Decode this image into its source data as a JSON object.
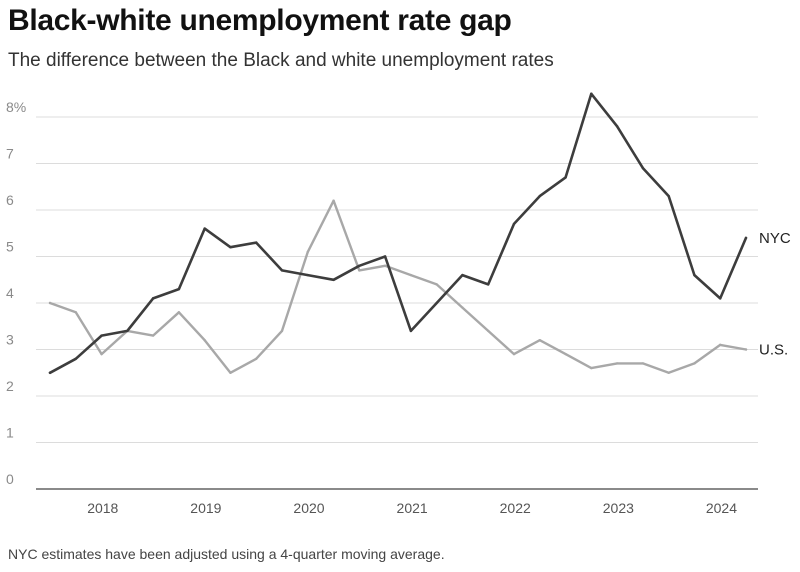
{
  "title": "Black-white unemployment rate gap",
  "subtitle": "The difference between the Black and white unemployment rates",
  "note": "NYC estimates have been adjusted using a 4-quarter moving average.",
  "colors": {
    "nyc": "#3d3d3d",
    "us": "#a8a8a8"
  },
  "chart_data": {
    "type": "line",
    "title": "Black-white unemployment rate gap",
    "subtitle": "The difference between the Black and white unemployment rates",
    "xlabel": "",
    "ylabel": "",
    "ylim": [
      0,
      8.5
    ],
    "xlim": [
      2017.75,
      2024.75
    ],
    "yticks": [
      0,
      1,
      2,
      3,
      4,
      5,
      6,
      7,
      8
    ],
    "ytick_labels": [
      "0",
      "1",
      "2",
      "3",
      "4",
      "5",
      "6",
      "7",
      "8%"
    ],
    "xticks": [
      2018,
      2019,
      2020,
      2021,
      2022,
      2023,
      2024
    ],
    "xtick_labels": [
      "2018",
      "2019",
      "2020",
      "2021",
      "2022",
      "2023",
      "2024"
    ],
    "grid": true,
    "legend": "direct labels at right end of lines",
    "series": [
      {
        "name": "NYC",
        "label": "NYC",
        "x": [
          2017.75,
          2018.0,
          2018.25,
          2018.5,
          2018.75,
          2019.0,
          2019.25,
          2019.5,
          2019.75,
          2020.0,
          2020.25,
          2020.5,
          2020.75,
          2021.0,
          2021.25,
          2021.5,
          2021.75,
          2022.0,
          2022.25,
          2022.5,
          2022.75,
          2023.0,
          2023.25,
          2023.5,
          2023.75,
          2024.0,
          2024.25,
          2024.5
        ],
        "values": [
          2.5,
          2.8,
          3.3,
          3.4,
          4.1,
          4.3,
          5.6,
          5.2,
          5.3,
          4.7,
          4.6,
          4.5,
          4.8,
          5.0,
          3.4,
          4.0,
          4.6,
          4.4,
          5.7,
          6.3,
          6.7,
          8.5,
          7.8,
          6.9,
          6.3,
          4.6,
          4.1,
          5.4
        ]
      },
      {
        "name": "U.S.",
        "label": "U.S.",
        "x": [
          2017.75,
          2018.0,
          2018.25,
          2018.5,
          2018.75,
          2019.0,
          2019.25,
          2019.5,
          2019.75,
          2020.0,
          2020.25,
          2020.5,
          2020.75,
          2021.0,
          2021.25,
          2021.5,
          2021.75,
          2022.0,
          2022.25,
          2022.5,
          2022.75,
          2023.0,
          2023.25,
          2023.5,
          2023.75,
          2024.0,
          2024.25,
          2024.5
        ],
        "values": [
          4.0,
          3.8,
          2.9,
          3.4,
          3.3,
          3.8,
          3.2,
          2.5,
          2.8,
          3.4,
          5.1,
          6.2,
          4.7,
          4.8,
          4.6,
          4.4,
          3.9,
          3.4,
          2.9,
          3.2,
          2.9,
          2.6,
          2.7,
          2.7,
          2.5,
          2.7,
          3.1,
          3.0
        ]
      }
    ]
  }
}
